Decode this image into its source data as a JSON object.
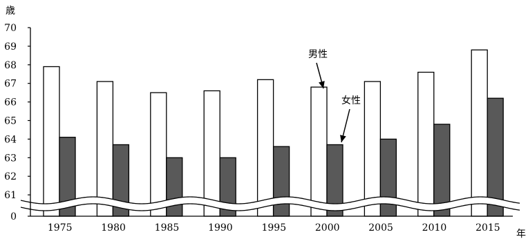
{
  "chart_data": {
    "type": "bar",
    "ylabel": "歳",
    "xlabel": "年",
    "categories": [
      "1975",
      "1980",
      "1985",
      "1990",
      "1995",
      "2000",
      "2005",
      "2010",
      "2015"
    ],
    "series": [
      {
        "name": "男性",
        "color": "#ffffff",
        "values": [
          67.9,
          67.1,
          66.5,
          66.6,
          67.2,
          66.8,
          67.1,
          67.6,
          68.8
        ]
      },
      {
        "name": "女性",
        "color": "#595959",
        "values": [
          64.1,
          63.7,
          63.0,
          63.0,
          63.6,
          63.7,
          64.0,
          64.8,
          66.2
        ]
      }
    ],
    "y_ticks": [
      "70",
      "69",
      "68",
      "67",
      "66",
      "65",
      "64",
      "63",
      "62",
      "61",
      "0"
    ],
    "ylim": [
      60,
      70
    ],
    "axis_break": true,
    "grid": false,
    "annotations": [
      {
        "text": "男性",
        "points_to": {
          "series": "男性",
          "category": "2000"
        }
      },
      {
        "text": "女性",
        "points_to": {
          "series": "女性",
          "category": "2000"
        }
      }
    ]
  }
}
